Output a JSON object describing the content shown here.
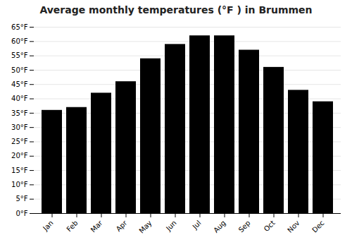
{
  "chart_data": {
    "type": "bar",
    "title": "Average monthly temperatures (°F ) in Brummen",
    "categories": [
      "Jan",
      "Feb",
      "Mar",
      "Apr",
      "May",
      "Jun",
      "Jul",
      "Aug",
      "Sep",
      "Oct",
      "Nov",
      "Dec"
    ],
    "values": [
      36,
      37,
      42,
      46,
      54,
      59,
      62,
      62,
      57,
      51,
      43,
      39
    ],
    "ylim": [
      0,
      65
    ],
    "yticks": [
      {
        "value": 0,
        "label": "0°F"
      },
      {
        "value": 5,
        "label": "5°F"
      },
      {
        "value": 10,
        "label": "10°F"
      },
      {
        "value": 15,
        "label": "15°F"
      },
      {
        "value": 20,
        "label": "20°F"
      },
      {
        "value": 25,
        "label": "25°F"
      },
      {
        "value": 30,
        "label": "30°F"
      },
      {
        "value": 35,
        "label": "35°F"
      },
      {
        "value": 40,
        "label": "40°F"
      },
      {
        "value": 45,
        "label": "45°F"
      },
      {
        "value": 50,
        "label": "50°F"
      },
      {
        "value": 55,
        "label": "55°F"
      },
      {
        "value": 60,
        "label": "60°F"
      },
      {
        "value": 65,
        "label": "65°F"
      }
    ],
    "grid": true
  }
}
